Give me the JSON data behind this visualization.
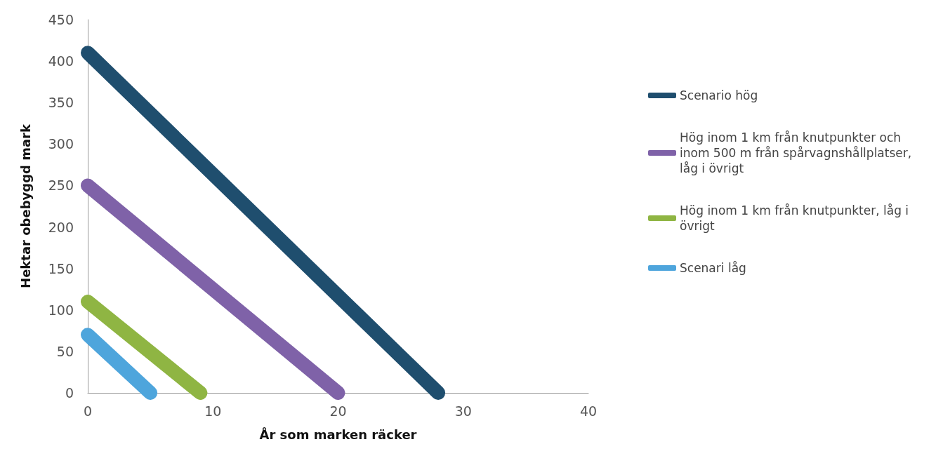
{
  "chart_data": {
    "type": "line",
    "xlabel": "År som marken räcker",
    "ylabel": "Hektar obebyggd mark",
    "xlim": [
      0,
      40
    ],
    "xticks": [
      0,
      10,
      20,
      30,
      40
    ],
    "ylim": [
      0,
      450
    ],
    "yticks": [
      0,
      50,
      100,
      150,
      200,
      250,
      300,
      350,
      400,
      450
    ],
    "grid": false,
    "legend": "right",
    "line_style": "solid",
    "series": [
      {
        "name": "Scenario hög",
        "color": "#1f4e6e",
        "x": [
          0,
          28
        ],
        "values": [
          410,
          0
        ]
      },
      {
        "name": "Hög inom 1 km från knutpunkter och inom 500 m från spårvagnshållplatser, låg i övrigt",
        "color": "#7f62a8",
        "x": [
          0,
          20
        ],
        "values": [
          250,
          0
        ]
      },
      {
        "name": "Hög inom 1 km från knutpunkter, låg i övrigt",
        "color": "#8fb543",
        "x": [
          0,
          9
        ],
        "values": [
          110,
          0
        ]
      },
      {
        "name": "Scenari låg",
        "color": "#4ea5dc",
        "x": [
          0,
          5
        ],
        "values": [
          70,
          0
        ]
      }
    ]
  }
}
